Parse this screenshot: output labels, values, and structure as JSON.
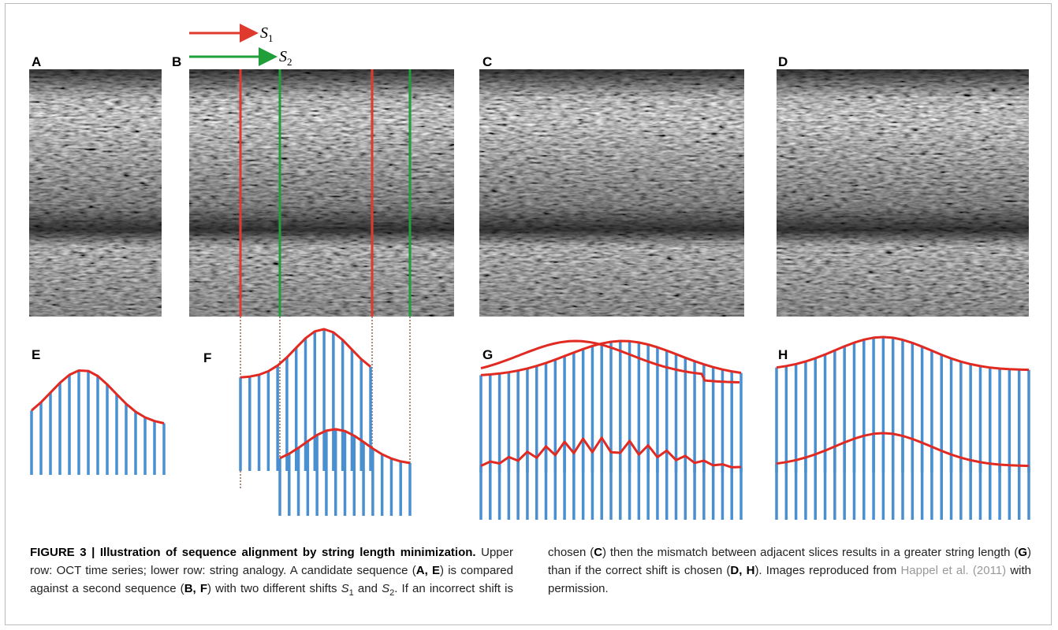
{
  "panel_labels": [
    "A",
    "B",
    "C",
    "D",
    "E",
    "F",
    "G",
    "H"
  ],
  "arrow_labels": [
    {
      "symbol": "S",
      "subscript": "1"
    },
    {
      "symbol": "S",
      "subscript": "2"
    }
  ],
  "caption": {
    "runs": [
      "FIGURE 3 | Illustration of sequence alignment by string length minimization.",
      " Upper row: OCT time series; lower row: string analogy. A candidate sequence (",
      "A, E",
      ") is compared against a second sequence (",
      "B, F",
      ") with two different shifts ",
      "S",
      "1",
      " and ",
      "S",
      "2",
      ". If an incorrect shift is chosen (",
      "C",
      ") then the mismatch between adjacent slices results in a greater string length (",
      "G",
      ") than if the correct shift is chosen (",
      "D, H",
      "). Images reproduced from ",
      "Happel et al. (2011)",
      " with permission."
    ]
  }
}
